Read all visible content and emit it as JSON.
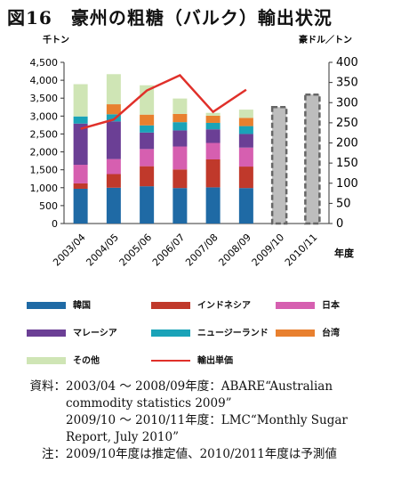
{
  "title": "図16　豪州の粗糖（バルク）輸出状況",
  "chart_data": {
    "type": "bar",
    "stacked": true,
    "title": "図16　豪州の粗糖（バルク）輸出状況",
    "left_unit": "千トン",
    "right_unit": "豪ドル／トン",
    "xlabel": "年度",
    "categories": [
      "2003/04",
      "2004/05",
      "2005/06",
      "2006/07",
      "2007/08",
      "2008/09",
      "2009/10",
      "2010/11"
    ],
    "left_axis": {
      "ylim": [
        0,
        4500
      ],
      "ticks": [
        "0",
        "500",
        "1,000",
        "1,500",
        "2,000",
        "2,500",
        "3,000",
        "3,500",
        "4,000",
        "4,500"
      ]
    },
    "right_axis": {
      "ylim": [
        0,
        400
      ],
      "ticks": [
        "0",
        "50",
        "100",
        "150",
        "200",
        "250",
        "300",
        "350",
        "400"
      ]
    },
    "series": [
      {
        "name": "韓国",
        "color": "#1f6aa5",
        "values": [
          970,
          1000,
          1040,
          990,
          1010,
          990,
          null,
          null
        ]
      },
      {
        "name": "インドネシア",
        "color": "#c0392b",
        "values": [
          150,
          380,
          560,
          520,
          780,
          600,
          null,
          null
        ]
      },
      {
        "name": "日本",
        "color": "#d65fb0",
        "values": [
          520,
          420,
          480,
          640,
          460,
          530,
          null,
          null
        ]
      },
      {
        "name": "マレーシア",
        "color": "#6b3f95",
        "values": [
          1150,
          1050,
          460,
          450,
          380,
          380,
          null,
          null
        ]
      },
      {
        "name": "ニュージーランド",
        "color": "#1aa3b8",
        "values": [
          200,
          200,
          200,
          230,
          180,
          220,
          null,
          null
        ]
      },
      {
        "name": "台湾",
        "color": "#e8802f",
        "values": [
          0,
          280,
          300,
          230,
          200,
          230,
          null,
          null
        ]
      },
      {
        "name": "その他",
        "color": "#cfe5b5",
        "values": [
          900,
          840,
          820,
          430,
          80,
          230,
          null,
          null
        ]
      }
    ],
    "forecast_totals": {
      "color": "#bdbdbd",
      "values": [
        null,
        null,
        null,
        null,
        null,
        null,
        3250,
        3600
      ]
    },
    "line_series": {
      "name": "輸出単価",
      "color": "#e0302a",
      "axis": "right",
      "values": [
        235,
        258,
        330,
        368,
        277,
        332,
        null,
        null
      ]
    },
    "grid": false,
    "legend_position": "bottom"
  },
  "notes": [
    {
      "head": "資料：",
      "lines": [
        "2003/04 ～ 2008/09年度：ABARE“Australian",
        "commodity statistics 2009”",
        "2009/10 ～ 2010/11年度：LMC“Monthly Sugar",
        "Report, July 2010”"
      ]
    },
    {
      "head": "注：",
      "lines": [
        "2009/10年度は推定値、2010/2011年度は予測値"
      ]
    }
  ]
}
